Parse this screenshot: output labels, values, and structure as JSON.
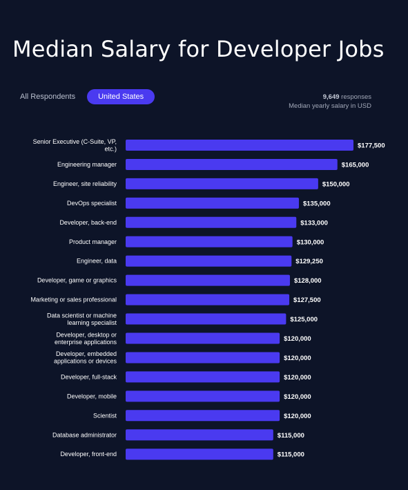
{
  "title": "Median Salary for Developer Jobs",
  "tabs": [
    {
      "label": "All Respondents",
      "active": false
    },
    {
      "label": "United States",
      "active": true
    }
  ],
  "meta": {
    "responses_count": "9,649",
    "responses_label": "responses",
    "subtitle": "Median yearly salary in USD"
  },
  "colors": {
    "background": "#0d1428",
    "bar": "#4a3af0",
    "text": "#ffffff"
  },
  "chart_data": {
    "type": "bar",
    "orientation": "horizontal",
    "title": "Median Salary for Developer Jobs",
    "xlabel": "",
    "ylabel": "",
    "xlim": [
      0,
      177500
    ],
    "grid": false,
    "categories": [
      [
        "Senior Executive (C-Suite, VP,",
        "etc.)"
      ],
      [
        "Engineering manager"
      ],
      [
        "Engineer, site reliability"
      ],
      [
        "DevOps specialist"
      ],
      [
        "Developer, back-end"
      ],
      [
        "Product manager"
      ],
      [
        "Engineer, data"
      ],
      [
        "Developer, game or graphics"
      ],
      [
        "Marketing or sales professional"
      ],
      [
        "Data scientist or machine",
        "learning specialist"
      ],
      [
        "Developer, desktop or",
        "enterprise applications"
      ],
      [
        "Developer, embedded",
        "applications or devices"
      ],
      [
        "Developer, full-stack"
      ],
      [
        "Developer, mobile"
      ],
      [
        "Scientist"
      ],
      [
        "Database administrator"
      ],
      [
        "Developer, front-end"
      ]
    ],
    "values": [
      177500,
      165000,
      150000,
      135000,
      133000,
      130000,
      129250,
      128000,
      127500,
      125000,
      120000,
      120000,
      120000,
      120000,
      120000,
      115000,
      115000
    ],
    "value_labels": [
      "$177,500",
      "$165,000",
      "$150,000",
      "$135,000",
      "$133,000",
      "$130,000",
      "$129,250",
      "$128,000",
      "$127,500",
      "$125,000",
      "$120,000",
      "$120,000",
      "$120,000",
      "$120,000",
      "$120,000",
      "$115,000",
      "$115,000"
    ]
  }
}
